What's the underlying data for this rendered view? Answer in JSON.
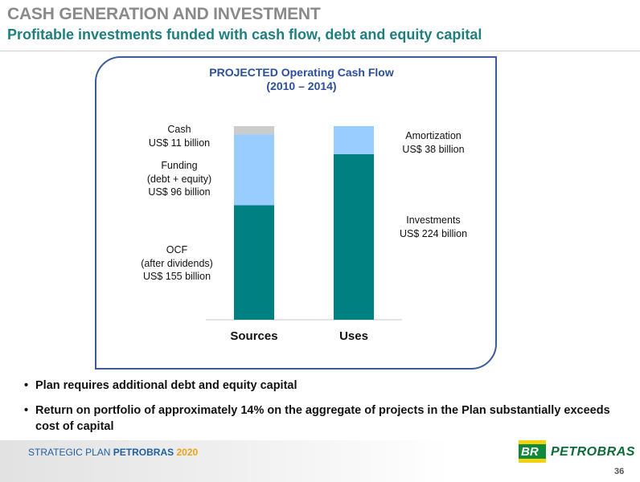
{
  "header": {
    "title": "CASH GENERATION AND INVESTMENT",
    "subtitle": "Profitable investments funded with cash flow, debt and equity capital"
  },
  "chart_data": {
    "type": "bar",
    "stacked": true,
    "title": "PROJECTED Operating Cash Flow",
    "subtitle": "(2010 – 2014)",
    "categories": [
      "Sources",
      "Uses"
    ],
    "series": [
      {
        "name": "OCF (after dividends)",
        "values": [
          155,
          0
        ],
        "color": "#008080"
      },
      {
        "name": "Funding (debt + equity)",
        "values": [
          96,
          0
        ],
        "color": "#99ccff"
      },
      {
        "name": "Cash",
        "values": [
          11,
          0
        ],
        "color": "#cccccc"
      },
      {
        "name": "Investments",
        "values": [
          0,
          224
        ],
        "color": "#008080"
      },
      {
        "name": "Amortization",
        "values": [
          0,
          38
        ],
        "color": "#99ccff"
      }
    ],
    "annotations": {
      "cash": [
        "Cash",
        "US$ 11 billion"
      ],
      "funding": [
        "Funding",
        "(debt + equity)",
        "US$ 96 billion"
      ],
      "ocf": [
        "OCF",
        "(after dividends)",
        "US$ 155 billion"
      ],
      "amortization": [
        "Amortization",
        "US$ 38 billion"
      ],
      "investments": [
        "Investments",
        "US$ 224 billion"
      ]
    },
    "ylim": [
      0,
      262
    ],
    "grid": false
  },
  "bullets": [
    "Plan requires additional debt and equity capital",
    "Return on portfolio of approximately 14% on the aggregate of projects in the Plan substantially exceeds cost of capital"
  ],
  "footer": {
    "label_prefix": "STRATEGIC PLAN ",
    "label_brand": "PETROBRAS",
    "label_year": "2020",
    "logo_mark": "BR",
    "logo_word": "PETROBRAS",
    "page_number": "36"
  },
  "colors": {
    "title_gray": "#8a8a8a",
    "subtitle_teal": "#1f7f7f",
    "panel_border": "#3b5b9b",
    "chart_title_blue": "#2b4f9a"
  }
}
